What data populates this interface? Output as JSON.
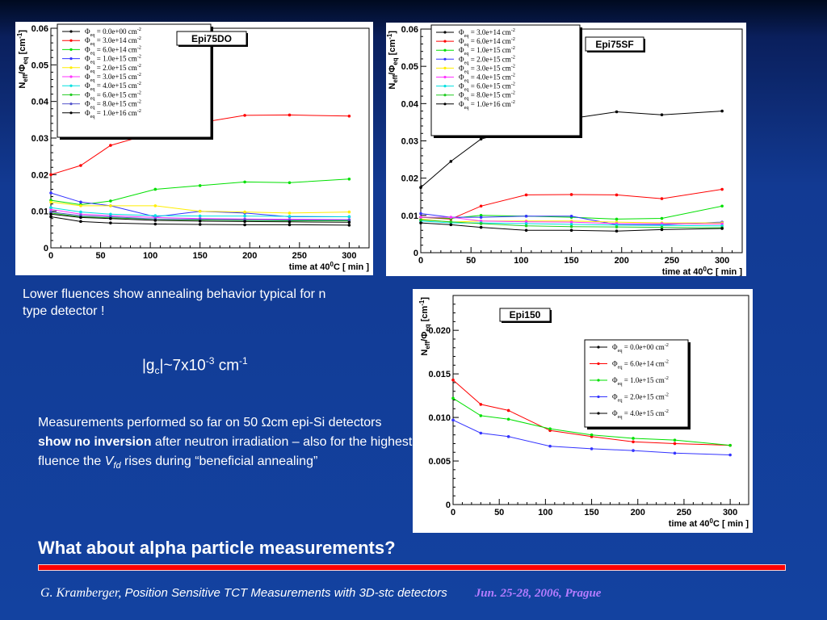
{
  "text": {
    "annealing": "Lower fluences show annealing behavior typical for n type detector !",
    "gc_prefix": "|g",
    "gc_sub": "c",
    "gc_mid": "|~7x10",
    "gc_sup": "-3",
    "gc_unit": " cm",
    "gc_unit_sup": "-1",
    "meas_1": "Measurements performed so far on 50 ",
    "meas_omega": "Ω",
    "meas_2": "cm epi-Si detectors ",
    "meas_bold": "show no inversion",
    "meas_3": " after neutron irradiation  – also for the highest fluence the ",
    "meas_v": "V",
    "meas_vsub": "fd",
    "meas_4": " rises during “beneficial annealing”",
    "question": "What about alpha particle measurements?"
  },
  "footer": {
    "author": "G. Kramberger,",
    "title": " Position Sensitive TCT Measurements with 3D-stc detectors",
    "date": "Jun.  25-28, 2006, Prague"
  },
  "chart_data": [
    {
      "type": "line",
      "title": "Epi75DO",
      "xlabel": "time at 40°C  [ min ]",
      "ylabel": "N_eff/Φ_eq  [cm^-1]",
      "xlim": [
        0,
        320
      ],
      "ylim": [
        0,
        0.06
      ],
      "xticks": [
        0,
        50,
        100,
        150,
        200,
        250,
        300
      ],
      "yticks": [
        0,
        0.01,
        0.02,
        0.03,
        0.04,
        0.05,
        0.06
      ],
      "legend_position": "top-left",
      "series": [
        {
          "name": "Φ_eq = 0.0e+00 cm^-2",
          "color": "#000000",
          "x": [
            0,
            30,
            60,
            105,
            150,
            195,
            240,
            300
          ],
          "y": [
            0.0085,
            0.0072,
            0.0068,
            0.0065,
            0.0064,
            0.0063,
            0.0063,
            0.0062
          ]
        },
        {
          "name": "Φ_eq = 3.0e+14 cm^-2",
          "color": "#ff0000",
          "x": [
            0,
            30,
            60,
            105,
            150,
            195,
            240,
            300
          ],
          "y": [
            0.02,
            0.0225,
            0.028,
            0.0315,
            0.0342,
            0.0362,
            0.0363,
            0.036
          ]
        },
        {
          "name": "Φ_eq = 6.0e+14 cm^-2",
          "color": "#00e000",
          "x": [
            0,
            30,
            60,
            105,
            150,
            195,
            240,
            300
          ],
          "y": [
            0.013,
            0.0118,
            0.0128,
            0.016,
            0.017,
            0.018,
            0.0178,
            0.0188
          ]
        },
        {
          "name": "Φ_eq = 1.0e+15 cm^-2",
          "color": "#3333ff",
          "x": [
            0,
            30,
            60,
            105,
            150,
            195,
            240,
            300
          ],
          "y": [
            0.015,
            0.0125,
            0.0115,
            0.0085,
            0.01,
            0.0095,
            0.0085,
            0.0085
          ]
        },
        {
          "name": "Φ_eq = 2.0e+15 cm^-2",
          "color": "#ffee00",
          "x": [
            0,
            30,
            60,
            105,
            150,
            195,
            240,
            300
          ],
          "y": [
            0.0125,
            0.0115,
            0.0115,
            0.0115,
            0.01,
            0.0098,
            0.0095,
            0.0098
          ]
        },
        {
          "name": "Φ_eq = 3.0e+15 cm^-2",
          "color": "#ff33ff",
          "x": [
            0,
            30,
            60,
            105,
            150,
            195,
            240,
            300
          ],
          "y": [
            0.0105,
            0.0092,
            0.0088,
            0.0083,
            0.008,
            0.0079,
            0.0078,
            0.0077
          ]
        },
        {
          "name": "Φ_eq = 4.0e+15 cm^-2",
          "color": "#00e0e0",
          "x": [
            0,
            30,
            60,
            105,
            150,
            195,
            240,
            300
          ],
          "y": [
            0.011,
            0.0098,
            0.0092,
            0.0088,
            0.0087,
            0.0087,
            0.0086,
            0.0085
          ]
        },
        {
          "name": "Φ_eq = 6.0e+15 cm^-2",
          "color": "#22cc22",
          "x": [
            0,
            30,
            60,
            105,
            150,
            195,
            240,
            300
          ],
          "y": [
            0.0095,
            0.0085,
            0.0082,
            0.0078,
            0.0076,
            0.0075,
            0.0074,
            0.0074
          ]
        },
        {
          "name": "Φ_eq = 8.0e+15 cm^-2",
          "color": "#5555cc",
          "x": [
            0,
            30,
            60,
            105,
            150,
            195,
            240,
            300
          ],
          "y": [
            0.0098,
            0.0088,
            0.0085,
            0.0079,
            0.0078,
            0.0077,
            0.0076,
            0.0076
          ]
        },
        {
          "name": "Φ_eq = 1.0e+16 cm^-2",
          "color": "#000000",
          "x": [
            0,
            30,
            60,
            105,
            150,
            195,
            240,
            300
          ],
          "y": [
            0.0092,
            0.0083,
            0.008,
            0.0075,
            0.0073,
            0.0072,
            0.0071,
            0.007
          ]
        }
      ]
    },
    {
      "type": "line",
      "title": "Epi75SF",
      "xlabel": "time at 40°C  [ min ]",
      "ylabel": "N_eff/Φ_eq  [cm^-1]",
      "xlim": [
        0,
        320
      ],
      "ylim": [
        0,
        0.06
      ],
      "xticks": [
        0,
        50,
        100,
        150,
        200,
        250,
        300
      ],
      "yticks": [
        0,
        0.01,
        0.02,
        0.03,
        0.04,
        0.05,
        0.06
      ],
      "legend_position": "top-left",
      "series": [
        {
          "name": "Φ_eq = 3.0e+14 cm^-2",
          "color": "#000000",
          "x": [
            0,
            30,
            60,
            105,
            150,
            195,
            240,
            300
          ],
          "y": [
            0.0175,
            0.0245,
            0.0305,
            0.0335,
            0.036,
            0.0378,
            0.037,
            0.038
          ]
        },
        {
          "name": "Φ_eq = 6.0e+14 cm^-2",
          "color": "#ff0000",
          "x": [
            0,
            30,
            60,
            105,
            150,
            195,
            240,
            300
          ],
          "y": [
            0.0095,
            0.009,
            0.0125,
            0.0155,
            0.0156,
            0.0155,
            0.0145,
            0.017
          ]
        },
        {
          "name": "Φ_eq = 1.0e+15 cm^-2",
          "color": "#00e000",
          "x": [
            0,
            30,
            60,
            105,
            150,
            195,
            240,
            300
          ],
          "y": [
            0.0095,
            0.0092,
            0.01,
            0.0098,
            0.0095,
            0.009,
            0.0092,
            0.0125
          ]
        },
        {
          "name": "Φ_eq = 2.0e+15 cm^-2",
          "color": "#3333ff",
          "x": [
            0,
            30,
            60,
            105,
            150,
            195,
            240,
            300
          ],
          "y": [
            0.0105,
            0.0095,
            0.0095,
            0.0098,
            0.0098,
            0.0075,
            0.0075,
            0.0082
          ]
        },
        {
          "name": "Φ_eq = 3.0e+15 cm^-2",
          "color": "#ffee00",
          "x": [
            0,
            30,
            60,
            105,
            150,
            195,
            240,
            300
          ],
          "y": [
            0.009,
            0.0082,
            0.0085,
            0.0085,
            0.0085,
            0.0082,
            0.008,
            0.008
          ]
        },
        {
          "name": "Φ_eq = 4.0e+15 cm^-2",
          "color": "#ff33ff",
          "x": [
            0,
            30,
            60,
            105,
            150,
            195,
            240,
            300
          ],
          "y": [
            0.0095,
            0.0095,
            0.0085,
            0.0083,
            0.0082,
            0.0078,
            0.0078,
            0.0077
          ]
        },
        {
          "name": "Φ_eq = 6.0e+15 cm^-2",
          "color": "#00e0e0",
          "x": [
            0,
            30,
            60,
            105,
            150,
            195,
            240,
            300
          ],
          "y": [
            0.0085,
            0.008,
            0.008,
            0.0078,
            0.0076,
            0.0074,
            0.0073,
            0.0072
          ]
        },
        {
          "name": "Φ_eq = 8.0e+15 cm^-2",
          "color": "#22cc22",
          "x": [
            0,
            30,
            60,
            105,
            150,
            195,
            240,
            300
          ],
          "y": [
            0.0088,
            0.0083,
            0.0078,
            0.0072,
            0.007,
            0.0069,
            0.0068,
            0.0067
          ]
        },
        {
          "name": "Φ_eq = 1.0e+16 cm^-2",
          "color": "#000000",
          "x": [
            0,
            30,
            60,
            105,
            150,
            195,
            240,
            300
          ],
          "y": [
            0.008,
            0.0075,
            0.0068,
            0.006,
            0.006,
            0.0058,
            0.0062,
            0.0065
          ]
        }
      ]
    },
    {
      "type": "line",
      "title": "Epi150",
      "xlabel": "time at 40°C  [ min ]",
      "ylabel": "N_eff/Φ_eq  [cm^-1]",
      "xlim": [
        0,
        320
      ],
      "ylim": [
        0,
        0.024
      ],
      "xticks": [
        0,
        50,
        100,
        150,
        200,
        250,
        300
      ],
      "yticks": [
        0,
        0.005,
        0.01,
        0.015,
        0.02
      ],
      "legend_position": "top-right",
      "series": [
        {
          "name": "Φ_eq = 0.0e+00 cm^-2",
          "color": "#000000",
          "x": [],
          "y": []
        },
        {
          "name": "Φ_eq = 6.0e+14 cm^-2",
          "color": "#ff0000",
          "x": [
            0,
            30,
            60,
            105,
            150,
            195,
            240,
            300
          ],
          "y": [
            0.0143,
            0.0115,
            0.0108,
            0.0085,
            0.0078,
            0.0072,
            0.007,
            0.0068
          ]
        },
        {
          "name": "Φ_eq = 1.0e+15 cm^-2",
          "color": "#00e000",
          "x": [
            0,
            30,
            60,
            105,
            150,
            195,
            240,
            300
          ],
          "y": [
            0.0122,
            0.0102,
            0.0098,
            0.0087,
            0.008,
            0.0076,
            0.0074,
            0.0068
          ]
        },
        {
          "name": "Φ_eq = 2.0e+15 cm^-2",
          "color": "#3333ff",
          "x": [
            0,
            30,
            60,
            105,
            150,
            195,
            240,
            300
          ],
          "y": [
            0.0097,
            0.0082,
            0.0078,
            0.0067,
            0.0064,
            0.0062,
            0.0059,
            0.0057
          ]
        },
        {
          "name": "Φ_eq = 4.0e+15 cm^-2",
          "color": "#000000",
          "x": [],
          "y": []
        }
      ]
    }
  ]
}
